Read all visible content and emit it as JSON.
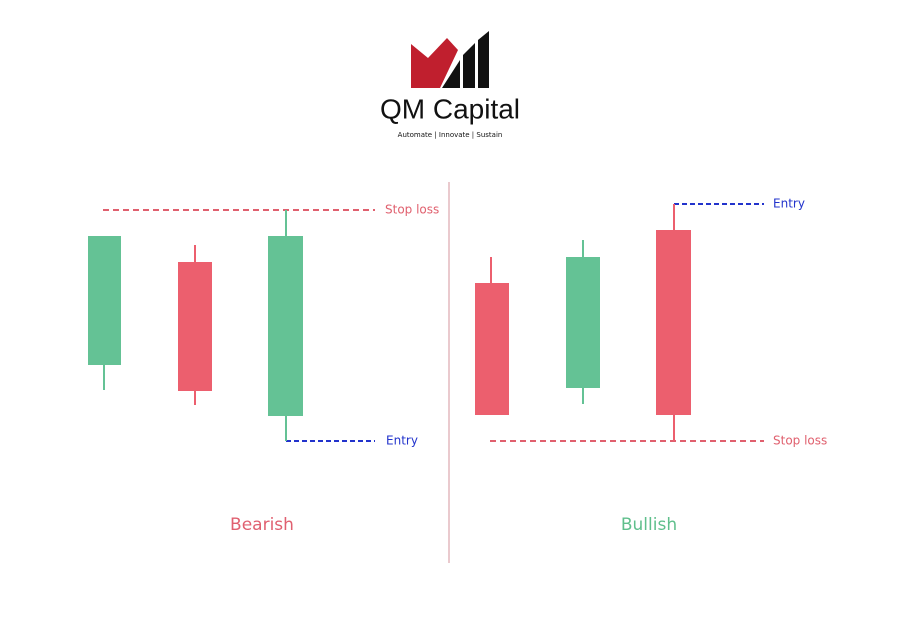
{
  "header": {
    "title": "QM Capital",
    "tagline": "Automate | Innovate | Sustain"
  },
  "panels": [
    {
      "title": "Bearish",
      "stop_label": "Stop loss",
      "entry_label": "Entry"
    },
    {
      "title": "Bullish",
      "stop_label": "Stop loss",
      "entry_label": "Entry"
    }
  ]
}
